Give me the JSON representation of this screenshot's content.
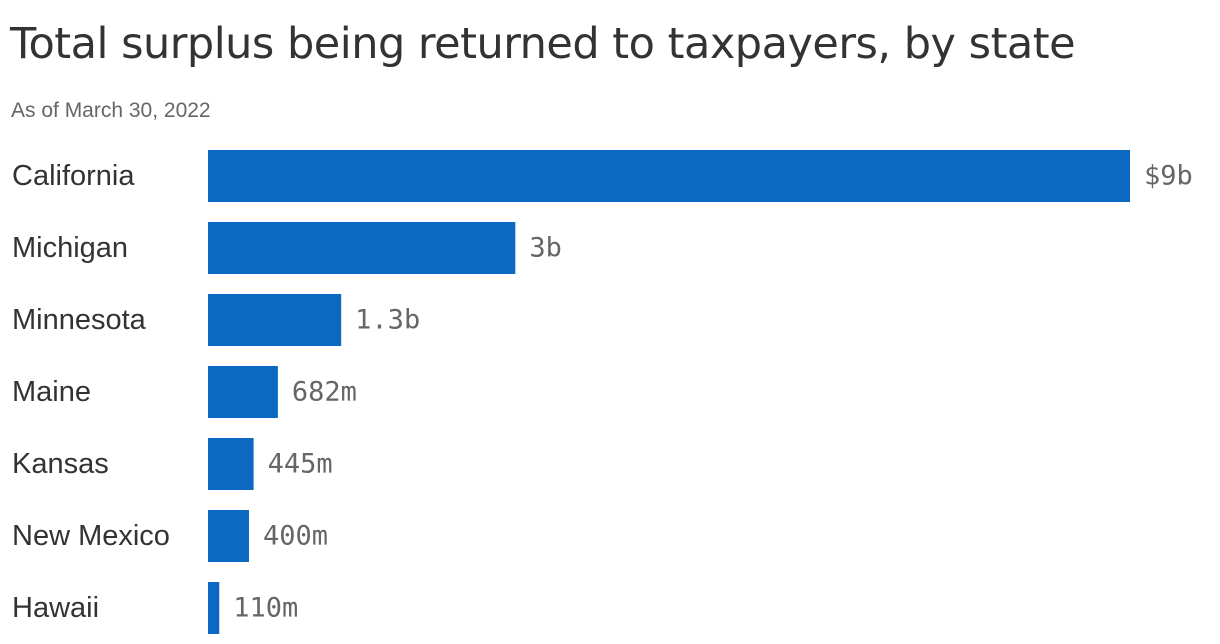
{
  "title": "Total surplus being returned to taxpayers, by state",
  "subtitle": "As of March 30, 2022",
  "colors": {
    "bar": "#0b69c1",
    "text": "#333333",
    "value_label": "#666666"
  },
  "chart_data": {
    "type": "bar",
    "orientation": "horizontal",
    "categories": [
      "California",
      "Michigan",
      "Minnesota",
      "Maine",
      "Kansas",
      "New Mexico",
      "Hawaii"
    ],
    "values": [
      9000000000,
      3000000000,
      1300000000,
      682000000,
      445000000,
      400000000,
      110000000
    ],
    "value_labels": [
      "$9b",
      "3b",
      "1.3b",
      "682m",
      "445m",
      "400m",
      "110m"
    ],
    "title": "Total surplus being returned to taxpayers, by state",
    "subtitle": "As of March 30, 2022",
    "xlabel": "",
    "ylabel": "",
    "xlim": [
      0,
      9000000000
    ],
    "grid": false,
    "legend": "none"
  }
}
